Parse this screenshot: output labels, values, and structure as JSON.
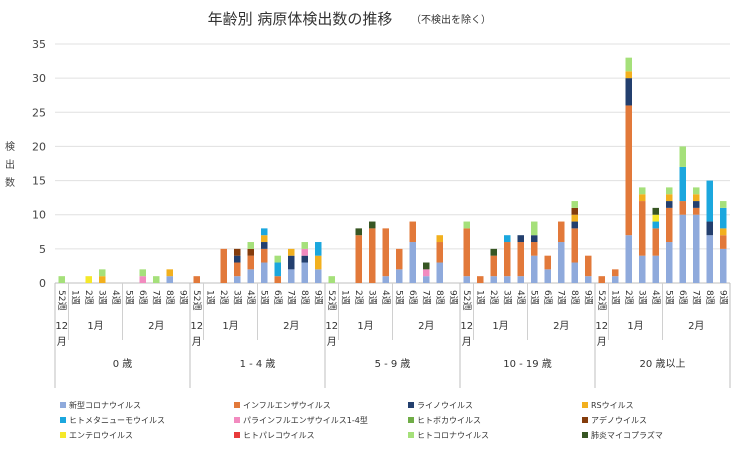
{
  "chart_data": {
    "type": "bar",
    "stacked": true,
    "title": "年齢別 病原体検出数の推移",
    "subtitle": "（不検出を除く）",
    "ylabel": "検出数",
    "ylim": [
      0,
      35
    ],
    "yticks": [
      0,
      5,
      10,
      15,
      20,
      25,
      30,
      35
    ],
    "week_labels": [
      "52週",
      "1週",
      "2週",
      "3週",
      "4週",
      "5週",
      "6週",
      "7週",
      "8週",
      "9週"
    ],
    "month_labels": {
      "dec": "12月",
      "jan": "1月",
      "feb": "2月"
    },
    "groups": [
      "0 歳",
      "1 - 4 歳",
      "5 - 9 歳",
      "10 - 19 歳",
      "20 歳以上"
    ],
    "series": [
      {
        "name": "新型コロナウイルス",
        "color": "#8faadc"
      },
      {
        "name": "インフルエンザウイルス",
        "color": "#e2793a"
      },
      {
        "name": "ライノウイルス",
        "color": "#233f6e"
      },
      {
        "name": "RSウイルス",
        "color": "#f2b01e"
      },
      {
        "name": "ヒトメタニューモウイルス",
        "color": "#1ba7de"
      },
      {
        "name": "パラインフルエンザウイルス1-4型",
        "color": "#f28bbf"
      },
      {
        "name": "ヒトボカウイルス",
        "color": "#70ad47"
      },
      {
        "name": "アデノウイルス",
        "color": "#843c0c"
      },
      {
        "name": "エンテロウイルス",
        "color": "#f5e82a"
      },
      {
        "name": "ヒトパレコウイルス",
        "color": "#e83a3a"
      },
      {
        "name": "ヒトコロナウイルス",
        "color": "#a5e07a"
      },
      {
        "name": "肺炎マイコプラズマ",
        "color": "#375623"
      }
    ],
    "values": [
      [
        [
          0,
          0,
          0,
          0,
          0,
          0,
          0,
          0,
          0,
          0,
          1,
          0
        ],
        [
          0,
          0,
          0,
          0,
          0,
          0,
          0,
          0,
          0,
          0,
          0,
          0
        ],
        [
          0,
          0,
          0,
          0,
          0,
          0,
          0,
          0,
          1,
          0,
          0,
          0
        ],
        [
          0,
          0,
          0,
          1,
          0,
          0,
          0,
          0,
          0,
          0,
          1,
          0
        ],
        [
          0,
          0,
          0,
          0,
          0,
          0,
          0,
          0,
          0,
          0,
          0,
          0
        ],
        [
          0,
          0,
          0,
          0,
          0,
          0,
          0,
          0,
          0,
          0,
          0,
          0
        ],
        [
          0,
          0,
          0,
          0,
          0,
          1,
          0,
          0,
          0,
          0,
          1,
          0
        ],
        [
          0,
          0,
          0,
          0,
          0,
          0,
          0,
          0,
          0,
          0,
          1,
          0
        ],
        [
          1,
          0,
          0,
          1,
          0,
          0,
          0,
          0,
          0,
          0,
          0,
          0
        ],
        [
          0,
          0,
          0,
          0,
          0,
          0,
          0,
          0,
          0,
          0,
          0,
          0
        ]
      ],
      [
        [
          0,
          1,
          0,
          0,
          0,
          0,
          0,
          0,
          0,
          0,
          0,
          0
        ],
        [
          0,
          0,
          0,
          0,
          0,
          0,
          0,
          0,
          0,
          0,
          0,
          0
        ],
        [
          0,
          5,
          0,
          0,
          0,
          0,
          0,
          0,
          0,
          0,
          0,
          0
        ],
        [
          1,
          2,
          1,
          0,
          0,
          0,
          0,
          1,
          0,
          0,
          0,
          0
        ],
        [
          2,
          2,
          0,
          0,
          0,
          0,
          0,
          1,
          0,
          0,
          1,
          0
        ],
        [
          3,
          2,
          1,
          1,
          1,
          0,
          0,
          0,
          0,
          0,
          0,
          0
        ],
        [
          0,
          1,
          0,
          0,
          2,
          0,
          0,
          0,
          0,
          0,
          1,
          0
        ],
        [
          2,
          0,
          2,
          1,
          0,
          0,
          0,
          0,
          0,
          0,
          0,
          0
        ],
        [
          3,
          0,
          1,
          0,
          0,
          1,
          0,
          0,
          0,
          0,
          1,
          0
        ],
        [
          2,
          0,
          0,
          2,
          2,
          0,
          0,
          0,
          0,
          0,
          0,
          0
        ]
      ],
      [
        [
          0,
          0,
          0,
          0,
          0,
          0,
          0,
          0,
          0,
          0,
          1,
          0
        ],
        [
          0,
          0,
          0,
          0,
          0,
          0,
          0,
          0,
          0,
          0,
          0,
          0
        ],
        [
          0,
          7,
          0,
          0,
          0,
          0,
          0,
          0,
          0,
          0,
          0,
          1
        ],
        [
          0,
          8,
          0,
          0,
          0,
          0,
          0,
          0,
          0,
          0,
          0,
          1
        ],
        [
          1,
          7,
          0,
          0,
          0,
          0,
          0,
          0,
          0,
          0,
          0,
          0
        ],
        [
          2,
          3,
          0,
          0,
          0,
          0,
          0,
          0,
          0,
          0,
          0,
          0
        ],
        [
          6,
          3,
          0,
          0,
          0,
          0,
          0,
          0,
          0,
          0,
          0,
          0
        ],
        [
          1,
          0,
          0,
          0,
          0,
          1,
          0,
          0,
          0,
          0,
          0,
          1
        ],
        [
          3,
          3,
          0,
          1,
          0,
          0,
          0,
          0,
          0,
          0,
          0,
          0
        ],
        [
          0,
          0,
          0,
          0,
          0,
          0,
          0,
          0,
          0,
          0,
          0,
          0
        ]
      ],
      [
        [
          1,
          7,
          0,
          0,
          0,
          0,
          0,
          0,
          0,
          0,
          1,
          0
        ],
        [
          0,
          1,
          0,
          0,
          0,
          0,
          0,
          0,
          0,
          0,
          0,
          0
        ],
        [
          1,
          3,
          0,
          0,
          0,
          0,
          0,
          0,
          0,
          0,
          0,
          1
        ],
        [
          1,
          5,
          0,
          0,
          1,
          0,
          0,
          0,
          0,
          0,
          0,
          0
        ],
        [
          1,
          5,
          1,
          0,
          0,
          0,
          0,
          0,
          0,
          0,
          0,
          0
        ],
        [
          4,
          2,
          1,
          0,
          0,
          0,
          0,
          0,
          0,
          0,
          2,
          0
        ],
        [
          2,
          2,
          0,
          0,
          0,
          0,
          0,
          0,
          0,
          0,
          0,
          0
        ],
        [
          6,
          3,
          0,
          0,
          0,
          0,
          0,
          0,
          0,
          0,
          0,
          0
        ],
        [
          3,
          5,
          1,
          1,
          0,
          0,
          0,
          1,
          0,
          0,
          1,
          0
        ],
        [
          1,
          3,
          0,
          0,
          0,
          0,
          0,
          0,
          0,
          0,
          0,
          0
        ]
      ],
      [
        [
          0,
          1,
          0,
          0,
          0,
          0,
          0,
          0,
          0,
          0,
          0,
          0
        ],
        [
          1,
          1,
          0,
          0,
          0,
          0,
          0,
          0,
          0,
          0,
          0,
          0
        ],
        [
          7,
          19,
          4,
          1,
          0,
          0,
          0,
          0,
          0,
          0,
          2,
          0
        ],
        [
          4,
          8,
          0,
          1,
          0,
          0,
          0,
          0,
          0,
          0,
          1,
          0
        ],
        [
          4,
          4,
          0,
          0,
          1,
          0,
          0,
          0,
          1,
          0,
          0,
          1
        ],
        [
          6,
          5,
          1,
          1,
          0,
          0,
          0,
          0,
          0,
          0,
          1,
          0
        ],
        [
          10,
          2,
          0,
          0,
          5,
          0,
          0,
          0,
          0,
          0,
          3,
          0
        ],
        [
          10,
          1,
          1,
          1,
          0,
          0,
          0,
          0,
          0,
          0,
          1,
          0
        ],
        [
          7,
          0,
          2,
          0,
          6,
          0,
          0,
          0,
          0,
          0,
          0,
          0
        ],
        [
          5,
          2,
          0,
          1,
          3,
          0,
          0,
          0,
          0,
          0,
          1,
          0
        ]
      ]
    ]
  }
}
